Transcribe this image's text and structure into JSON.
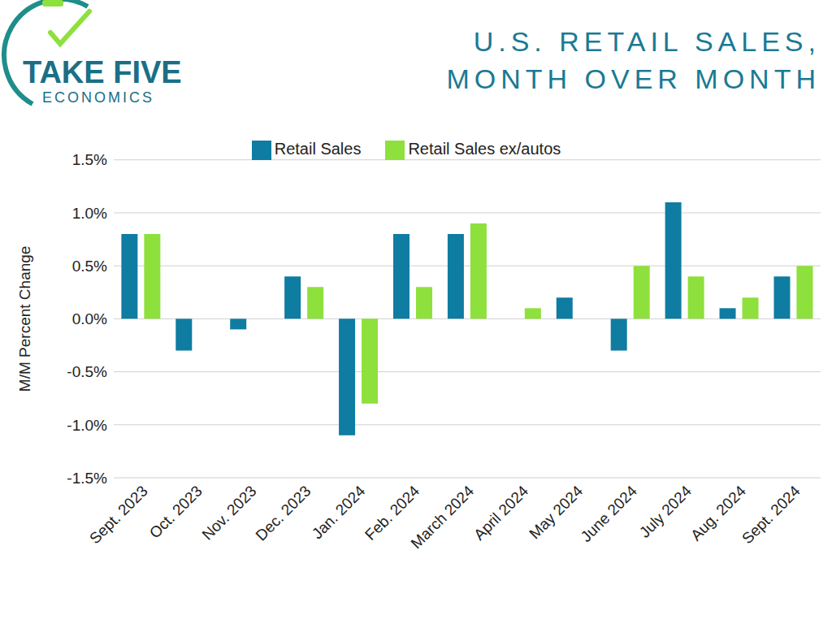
{
  "chart_data": {
    "type": "bar",
    "title": "U.S. RETAIL SALES, MONTH OVER MONTH",
    "logo": {
      "name": "TAKE FIVE",
      "subtitle": "ECONOMICS"
    },
    "y_label": "M/M Percent Change",
    "categories": [
      "Sept. 2023",
      "Oct. 2023",
      "Nov. 2023",
      "Dec. 2023",
      "Jan. 2024",
      "Feb. 2024",
      "March 2024",
      "April 2024",
      "May 2024",
      "June 2024",
      "July 2024",
      "Aug. 2024",
      "Sept. 2024"
    ],
    "series": [
      {
        "name": "Retail Sales",
        "color": "#0f7ca1",
        "values": [
          0.8,
          -0.3,
          -0.1,
          0.4,
          -1.1,
          0.8,
          0.8,
          0.0,
          0.2,
          -0.3,
          1.1,
          0.1,
          0.4
        ]
      },
      {
        "name": "Retail Sales ex/autos",
        "color": "#8ee03c",
        "values": [
          0.8,
          0.0,
          0.0,
          0.3,
          -0.8,
          0.3,
          0.9,
          0.1,
          0.0,
          0.5,
          0.4,
          0.2,
          0.5
        ]
      }
    ],
    "ylim": [
      -1.5,
      1.5
    ],
    "yticks": [
      {
        "value": -1.5,
        "label": "-1.5%"
      },
      {
        "value": -1.0,
        "label": "-1.0%"
      },
      {
        "value": -0.5,
        "label": "-0.5%"
      },
      {
        "value": 0.0,
        "label": "0.0%"
      },
      {
        "value": 0.5,
        "label": "0.5%"
      },
      {
        "value": 1.0,
        "label": "1.0%"
      },
      {
        "value": 1.5,
        "label": "1.5%"
      }
    ],
    "grid": true,
    "legend": "top"
  }
}
